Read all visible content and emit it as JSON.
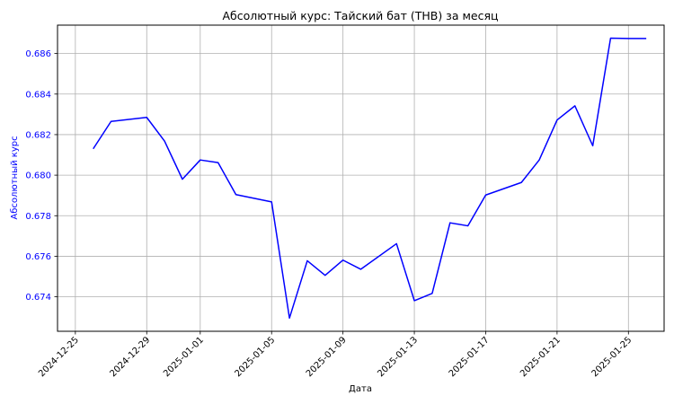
{
  "chart_data": {
    "type": "line",
    "title": "Абсолютный курс: Тайский бат (THB) за месяц",
    "xlabel": "Дата",
    "ylabel": "Абсолютный курс",
    "xlim": [
      "2024-12-24",
      "2025-01-27"
    ],
    "ylim": [
      0.6723,
      0.6874
    ],
    "grid": true,
    "x_ticks": [
      "2024-12-25",
      "2024-12-29",
      "2025-01-01",
      "2025-01-05",
      "2025-01-09",
      "2025-01-13",
      "2025-01-17",
      "2025-01-21",
      "2025-01-25"
    ],
    "y_ticks": [
      0.674,
      0.676,
      0.678,
      0.68,
      0.682,
      0.684,
      0.686
    ],
    "series": [
      {
        "color": "#0000ff",
        "x": [
          "2024-12-26",
          "2024-12-27",
          "2024-12-29",
          "2024-12-30",
          "2024-12-31",
          "2025-01-01",
          "2025-01-02",
          "2025-01-03",
          "2025-01-05",
          "2025-01-06",
          "2025-01-07",
          "2025-01-08",
          "2025-01-09",
          "2025-01-10",
          "2025-01-12",
          "2025-01-13",
          "2025-01-14",
          "2025-01-15",
          "2025-01-16",
          "2025-01-17",
          "2025-01-19",
          "2025-01-20",
          "2025-01-21",
          "2025-01-22",
          "2025-01-23",
          "2025-01-24",
          "2025-01-25",
          "2025-01-26"
        ],
        "y": [
          0.6813,
          0.68265,
          0.68285,
          0.68168,
          0.6798,
          0.68075,
          0.68062,
          0.67904,
          0.67868,
          0.67295,
          0.67578,
          0.67506,
          0.67581,
          0.67536,
          0.67662,
          0.67381,
          0.67417,
          0.67765,
          0.6775,
          0.67902,
          0.67964,
          0.68075,
          0.68272,
          0.68342,
          0.68145,
          0.68676,
          0.68674,
          0.68674
        ]
      }
    ]
  },
  "colors": {
    "series": "#0000ff",
    "ylabel": "#0000ff",
    "ytick_labels": "#0000ff",
    "grid": "#b0b0b0",
    "axes": "#000000"
  }
}
